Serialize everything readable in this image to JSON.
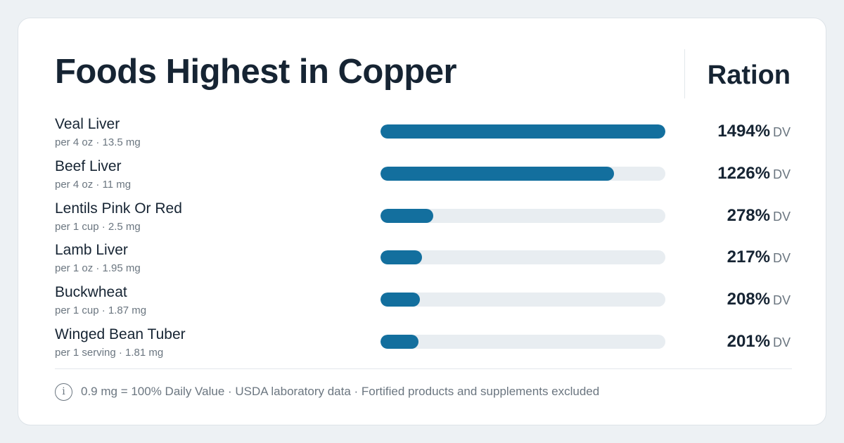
{
  "header": {
    "title": "Foods Highest in Copper",
    "brand": "Ration"
  },
  "footer": {
    "icon": "info-icon",
    "note": "0.9 mg = 100% Daily Value · USDA laboratory data · Fortified products and supplements excluded"
  },
  "colors": {
    "bar_fill": "#136f9e",
    "bar_track": "#e8edf1",
    "page_background": "#edf1f4"
  },
  "chart_data": {
    "type": "bar",
    "orientation": "horizontal",
    "title": "Foods Highest in Copper",
    "unit": "DV",
    "xlim": [
      0,
      1494
    ],
    "categories": [
      "Veal Liver",
      "Beef Liver",
      "Lentils Pink Or Red",
      "Lamb Liver",
      "Buckwheat",
      "Winged Bean Tuber"
    ],
    "values": [
      1494,
      1226,
      278,
      217,
      208,
      201
    ],
    "rows": [
      {
        "name": "Veal Liver",
        "serving": "per 4 oz · 13.5 mg",
        "value": 1494,
        "label": "1494%",
        "unit": "DV"
      },
      {
        "name": "Beef Liver",
        "serving": "per 4 oz · 11 mg",
        "value": 1226,
        "label": "1226%",
        "unit": "DV"
      },
      {
        "name": "Lentils Pink Or Red",
        "serving": "per 1 cup · 2.5 mg",
        "value": 278,
        "label": "278%",
        "unit": "DV"
      },
      {
        "name": "Lamb Liver",
        "serving": "per 1 oz · 1.95 mg",
        "value": 217,
        "label": "217%",
        "unit": "DV"
      },
      {
        "name": "Buckwheat",
        "serving": "per 1 cup · 1.87 mg",
        "value": 208,
        "label": "208%",
        "unit": "DV"
      },
      {
        "name": "Winged Bean Tuber",
        "serving": "per 1 serving · 1.81 mg",
        "value": 201,
        "label": "201%",
        "unit": "DV"
      }
    ]
  }
}
